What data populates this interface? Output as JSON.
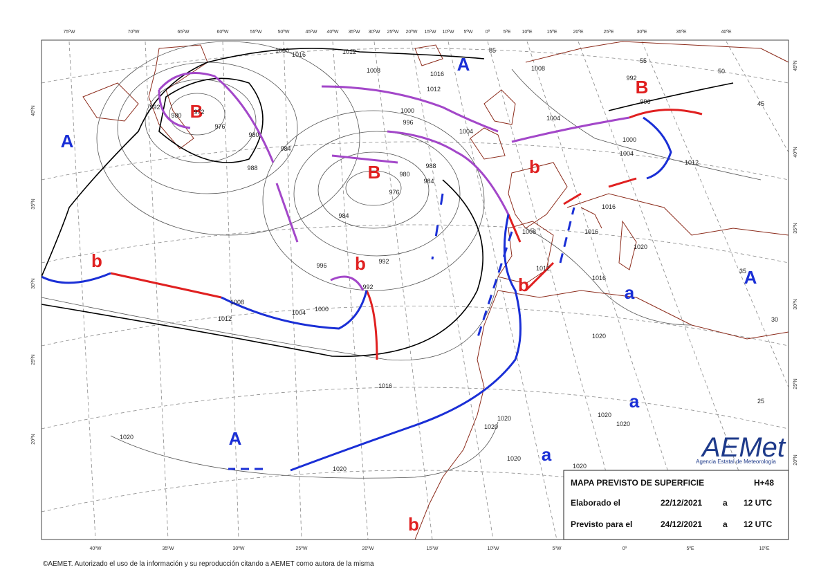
{
  "top_axis_labels": [
    "75ºW",
    "70ºW",
    "65ºW",
    "60ºW",
    "55ºW",
    "50ºW",
    "45ºW",
    "40ºW",
    "35ºW",
    "30ºW",
    "25ºW",
    "20ºW",
    "15ºW",
    "10ºW",
    "5ºW",
    "0º",
    "5ºE",
    "10ºE",
    "15ºE",
    "20ºE",
    "25ºE",
    "30ºE",
    "35ºE",
    "40ºE"
  ],
  "bottom_axis_labels": [
    "40ºW",
    "35ºW",
    "30ºW",
    "25ºW",
    "20ºW",
    "15ºW",
    "10ºW",
    "5ºW",
    "0º",
    "5ºE",
    "10ºE"
  ],
  "left_axis_labels": [
    "40ºN",
    "35ºN",
    "30ºN",
    "25ºN",
    "20ºN"
  ],
  "right_axis_labels": [
    "45ºN",
    "40ºN",
    "35ºN",
    "30ºN",
    "25ºN",
    "20ºN"
  ],
  "pressure_centers": [
    "A",
    "A",
    "B",
    "B",
    "B",
    "b",
    "b",
    "b",
    "b",
    "b",
    "A",
    "a",
    "a",
    "a",
    "A"
  ],
  "isobar_labels": [
    "1012",
    "1008",
    "1012",
    "1016",
    "1000",
    "1016",
    "992",
    "980",
    "972",
    "976",
    "980",
    "984",
    "988",
    "1000",
    "996",
    "1004",
    "988",
    "980",
    "984",
    "976",
    "984",
    "992",
    "996",
    "992",
    "1000",
    "1004",
    "1008",
    "1012",
    "1016",
    "1020",
    "1020",
    "1008",
    "1012",
    "1016",
    "1016",
    "1016",
    "1020",
    "1020",
    "1020",
    "1020",
    "1020",
    "1020",
    "1020",
    "1020",
    "1000",
    "1004",
    "1008",
    "1004",
    "1012",
    "996",
    "992",
    "85",
    "55",
    "50",
    "45",
    "35",
    "30",
    "25"
  ],
  "info_box": {
    "title": "MAPA PREVISTO DE SUPERFICIE",
    "lead": "H+48",
    "rows": [
      [
        "Elaborado el",
        "22/12/2021",
        "a",
        "12 UTC"
      ],
      [
        "Previsto para el",
        "24/12/2021",
        "a",
        "12 UTC"
      ]
    ]
  },
  "logo": {
    "name": "AEMet",
    "subtitle": "Agencia Estatal de Meteorología"
  },
  "footer": "©AEMET. Autorizado el uso de la información y su reproducción citando a AEMET como autora de la misma"
}
